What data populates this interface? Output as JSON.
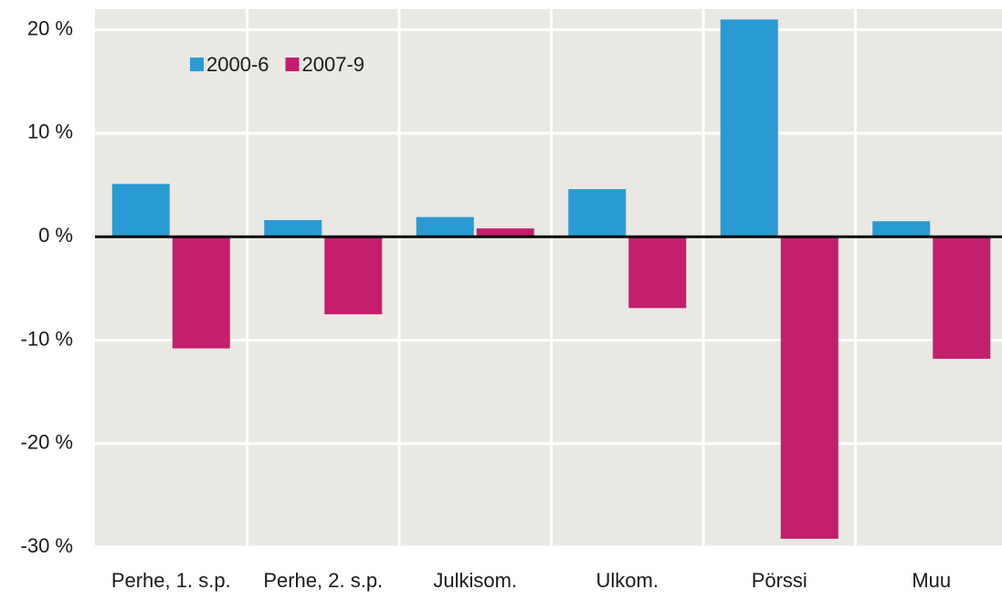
{
  "chart_data": {
    "type": "bar",
    "categories": [
      "Perhe, 1. s.p.",
      "Perhe, 2. s.p.",
      "Julkisom.",
      "Ulkom.",
      "Pörssi",
      "Muu"
    ],
    "series": [
      {
        "name": "2000-6",
        "color": "#2a9ad4",
        "values": [
          5.1,
          1.6,
          1.9,
          4.6,
          21.0,
          1.5
        ]
      },
      {
        "name": "2007-9",
        "color": "#c41e6e",
        "values": [
          -10.8,
          -7.5,
          0.8,
          -6.9,
          -29.2,
          -11.8
        ]
      }
    ],
    "ylim": [
      -30,
      22
    ],
    "yticks": [
      {
        "value": -30,
        "label": "-30 %"
      },
      {
        "value": -20,
        "label": "-20 %"
      },
      {
        "value": -10,
        "label": "-10 %"
      },
      {
        "value": 0,
        "label": "0 %"
      },
      {
        "value": 10,
        "label": "10 %"
      },
      {
        "value": 20,
        "label": "20 %"
      }
    ],
    "grid": true,
    "legend": "top-left"
  }
}
